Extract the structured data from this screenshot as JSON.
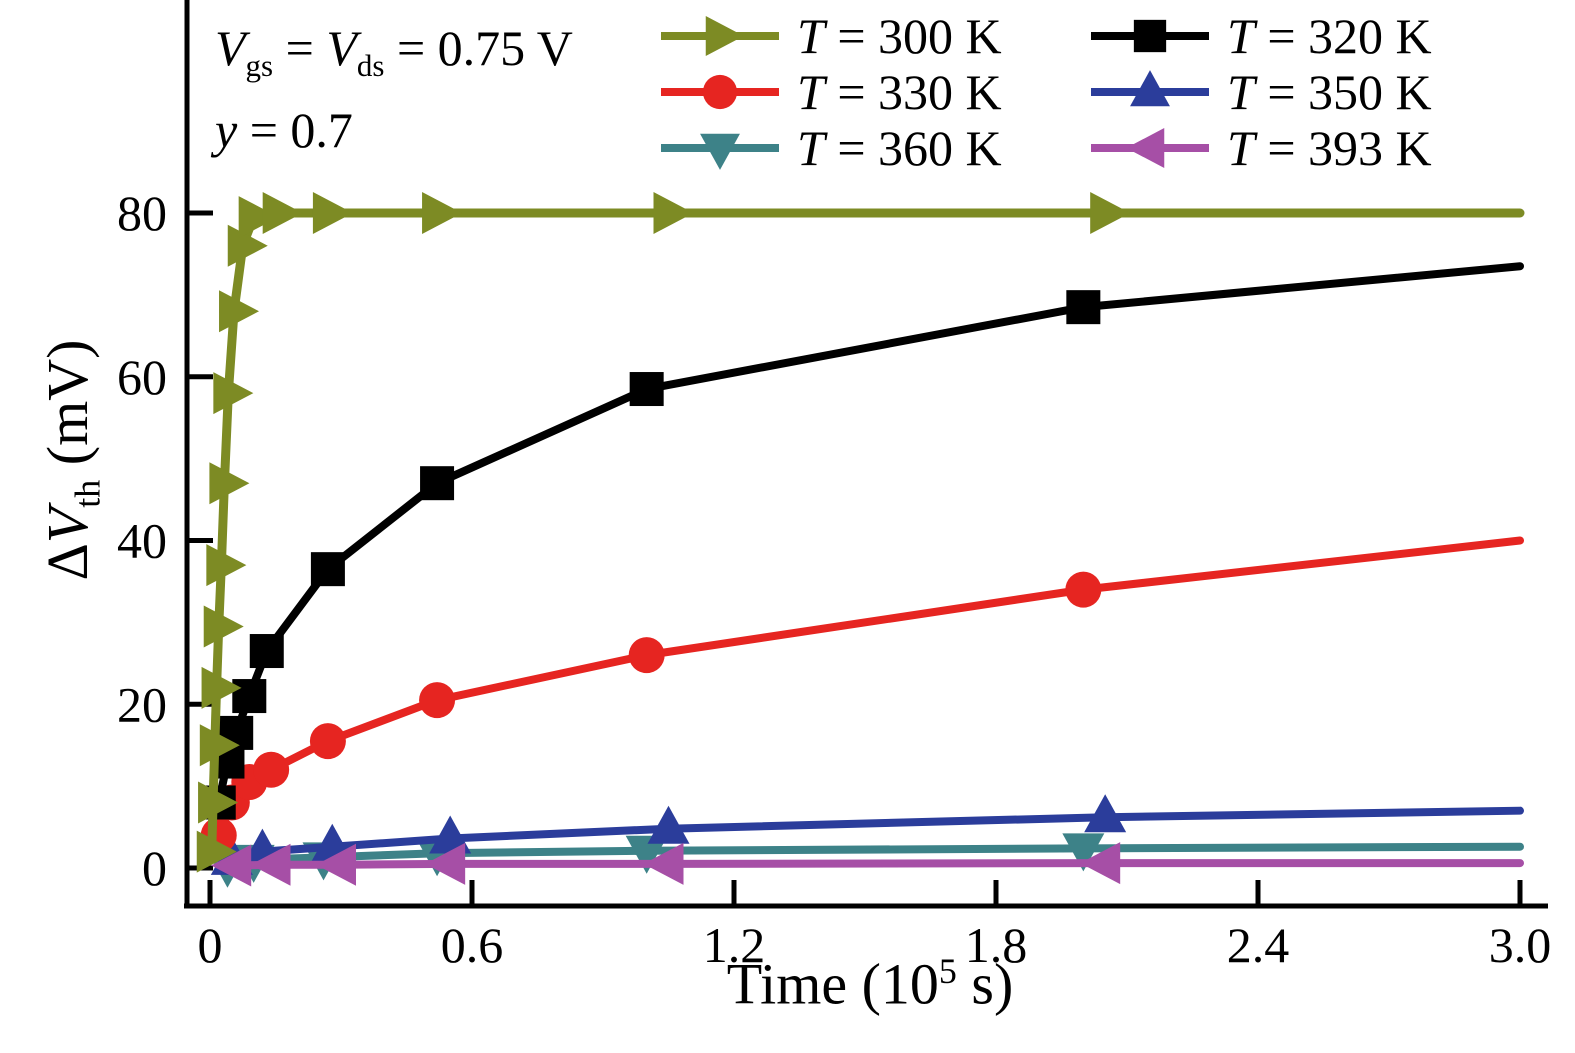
{
  "figure": {
    "annotation": {
      "v1": "V",
      "v1_sub": "gs",
      "eq1": " = ",
      "v2": "V",
      "v2_sub": "ds",
      "eq2": " = 0.75 V",
      "y_var": "y",
      "y_rest": " = 0.7"
    },
    "x_axis": {
      "label_pre": "Time (10",
      "label_sup": "5",
      "label_post": " s)"
    },
    "y_axis": {
      "label_delta": "Δ",
      "label_v": "V",
      "label_sub": "th",
      "label_post": " (mV)"
    }
  },
  "chart_data": {
    "type": "line",
    "title": "",
    "xlabel": "Time (10^5 s)",
    "ylabel": "Delta V_th (mV)",
    "xlim": [
      -0.06,
      3.3
    ],
    "ylim": [
      -4.6,
      104
    ],
    "x_ticks": [
      0,
      0.6,
      1.2,
      1.8,
      2.4,
      3.0
    ],
    "x_tick_labels": [
      "0",
      "0.6",
      "1.2",
      "1.8",
      "2.4",
      "3.0"
    ],
    "y_ticks": [
      0,
      20,
      40,
      60,
      80
    ],
    "y_tick_labels": [
      "0",
      "20",
      "40",
      "60",
      "80"
    ],
    "grid": false,
    "legend_position": "top-inside-two-columns",
    "annotation_text": [
      "Vgs = Vds = 0.75 V",
      "y = 0.7"
    ],
    "draw_order": [
      4,
      3,
      5,
      2,
      1,
      0
    ],
    "series": [
      {
        "name": "T = 300 K",
        "label_var": "T",
        "label_rest": " = 300 K",
        "color": "#7d8b24",
        "marker": "triangle-right",
        "line_width": 9,
        "x": [
          0.004,
          0.007,
          0.011,
          0.015,
          0.02,
          0.026,
          0.033,
          0.042,
          0.055,
          0.075,
          0.1,
          0.155,
          0.27,
          0.52,
          1.05,
          2.05,
          3.0
        ],
        "y": [
          2,
          8,
          15,
          22,
          29.5,
          37,
          47,
          58,
          68,
          76,
          79.5,
          80,
          80,
          80,
          80,
          80,
          80
        ]
      },
      {
        "name": "T = 320 K",
        "label_var": "T",
        "label_rest": " = 320 K",
        "color": "#000000",
        "marker": "square",
        "line_width": 8,
        "x": [
          0.02,
          0.04,
          0.06,
          0.09,
          0.13,
          0.27,
          0.52,
          1.0,
          2.0,
          3.0
        ],
        "y": [
          8,
          13,
          16.5,
          21,
          26.5,
          36.5,
          47,
          58.5,
          68.5,
          73.5
        ]
      },
      {
        "name": "T = 330 K",
        "label_var": "T",
        "label_rest": " = 330 K",
        "color": "#e62521",
        "marker": "circle",
        "line_width": 8,
        "x": [
          0.02,
          0.05,
          0.09,
          0.14,
          0.27,
          0.52,
          1.0,
          2.0,
          3.0
        ],
        "y": [
          4,
          8,
          10.5,
          12,
          15.5,
          20.5,
          26,
          34,
          40
        ]
      },
      {
        "name": "T = 350 K",
        "label_var": "T",
        "label_rest": " = 350 K",
        "color": "#2b3d9b",
        "marker": "triangle-up",
        "line_width": 8,
        "x": [
          0.05,
          0.12,
          0.28,
          0.55,
          1.05,
          2.05,
          3.0
        ],
        "y": [
          1,
          2,
          2.6,
          3.6,
          4.8,
          6.2,
          7
        ]
      },
      {
        "name": "T = 360 K",
        "label_var": "T",
        "label_rest": " = 360 K",
        "color": "#3d8288",
        "marker": "triangle-down",
        "line_width": 8,
        "x": [
          0.04,
          0.1,
          0.26,
          0.52,
          1.0,
          2.0,
          3.0
        ],
        "y": [
          0.4,
          1,
          1.3,
          1.8,
          2.1,
          2.4,
          2.6
        ]
      },
      {
        "name": "T = 393 K",
        "label_var": "T",
        "label_rest": " = 393 K",
        "color": "#a64fa6",
        "marker": "triangle-left",
        "line_width": 8,
        "x": [
          0.06,
          0.15,
          0.3,
          0.55,
          1.05,
          2.05,
          3.0
        ],
        "y": [
          0.3,
          0.4,
          0.4,
          0.5,
          0.5,
          0.6,
          0.6
        ]
      }
    ]
  }
}
